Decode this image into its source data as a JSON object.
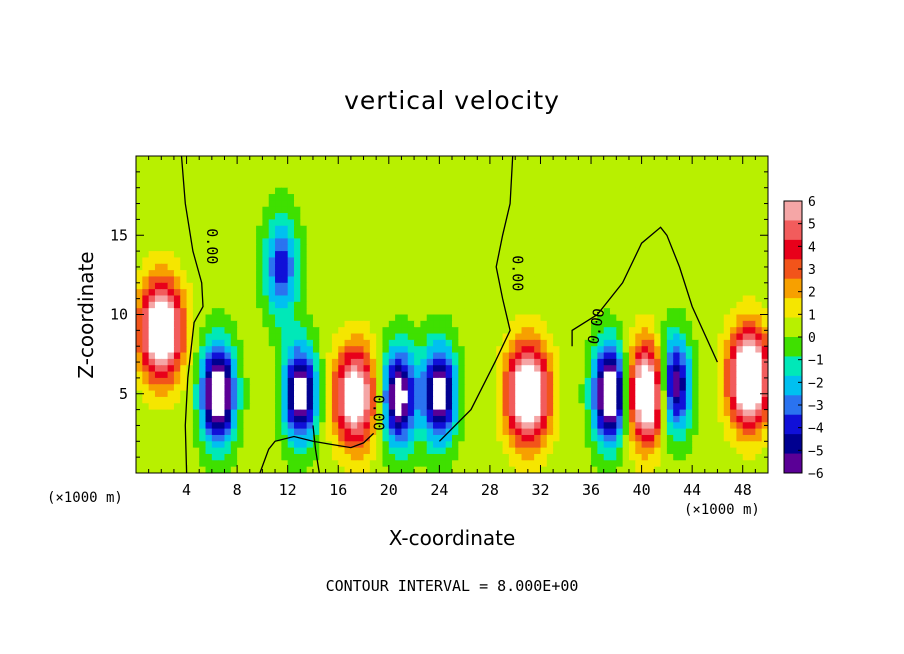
{
  "chart_data": {
    "type": "heatmap",
    "title": "vertical velocity",
    "xlabel": "X-coordinate",
    "ylabel": "Z-coordinate",
    "x_unit": "(×1000 m)",
    "contour_interval_text": "CONTOUR INTERVAL = 8.000E+00",
    "xlim": [
      0,
      50
    ],
    "ylim": [
      0,
      20
    ],
    "x_ticks": [
      4,
      8,
      12,
      16,
      20,
      24,
      28,
      32,
      36,
      40,
      44,
      48
    ],
    "y_ticks": [
      5,
      10,
      15
    ],
    "colorbar": {
      "range": [
        -6,
        6
      ],
      "ticks": [
        6,
        5,
        4,
        3,
        2,
        1,
        0,
        -1,
        -2,
        -3,
        -4,
        -5,
        -6
      ],
      "tick_labels": [
        "6",
        "5",
        "4",
        "3",
        "2",
        "1",
        "0",
        "−1",
        "−2",
        "−3",
        "−4",
        "−5",
        "−6"
      ],
      "colors": [
        "#f5a6a6",
        "#f25c5c",
        "#e8001a",
        "#f2541a",
        "#f7a000",
        "#f5e600",
        "#b8f000",
        "#3fe000",
        "#00e8b8",
        "#00c0f0",
        "#2a73f0",
        "#1010d8",
        "#000090",
        "#5a0096"
      ]
    },
    "contour_labels": [
      "0.00",
      "0.00",
      "0.00",
      "0.00"
    ],
    "features": [
      {
        "kind": "updraft",
        "x": 2.0,
        "z": 9.0,
        "peak": 6
      },
      {
        "kind": "downdraft",
        "x": 6.5,
        "z": 5.0,
        "peak": -6
      },
      {
        "kind": "downdraft",
        "x": 11.5,
        "z": 13.0,
        "peak": -3
      },
      {
        "kind": "downdraft",
        "x": 13.0,
        "z": 5.0,
        "peak": -5
      },
      {
        "kind": "updraft",
        "x": 17.3,
        "z": 4.8,
        "peak": 5
      },
      {
        "kind": "downdraft",
        "x": 20.8,
        "z": 4.8,
        "peak": -5
      },
      {
        "kind": "downdraft",
        "x": 24.0,
        "z": 5.0,
        "peak": -5
      },
      {
        "kind": "updraft",
        "x": 31.0,
        "z": 5.0,
        "peak": 6
      },
      {
        "kind": "downdraft",
        "x": 37.5,
        "z": 5.0,
        "peak": -6
      },
      {
        "kind": "updraft",
        "x": 40.5,
        "z": 5.0,
        "peak": 6
      },
      {
        "kind": "downdraft",
        "x": 42.5,
        "z": 5.5,
        "peak": -5
      },
      {
        "kind": "updraft",
        "x": 48.5,
        "z": 6.0,
        "peak": 6
      }
    ]
  }
}
